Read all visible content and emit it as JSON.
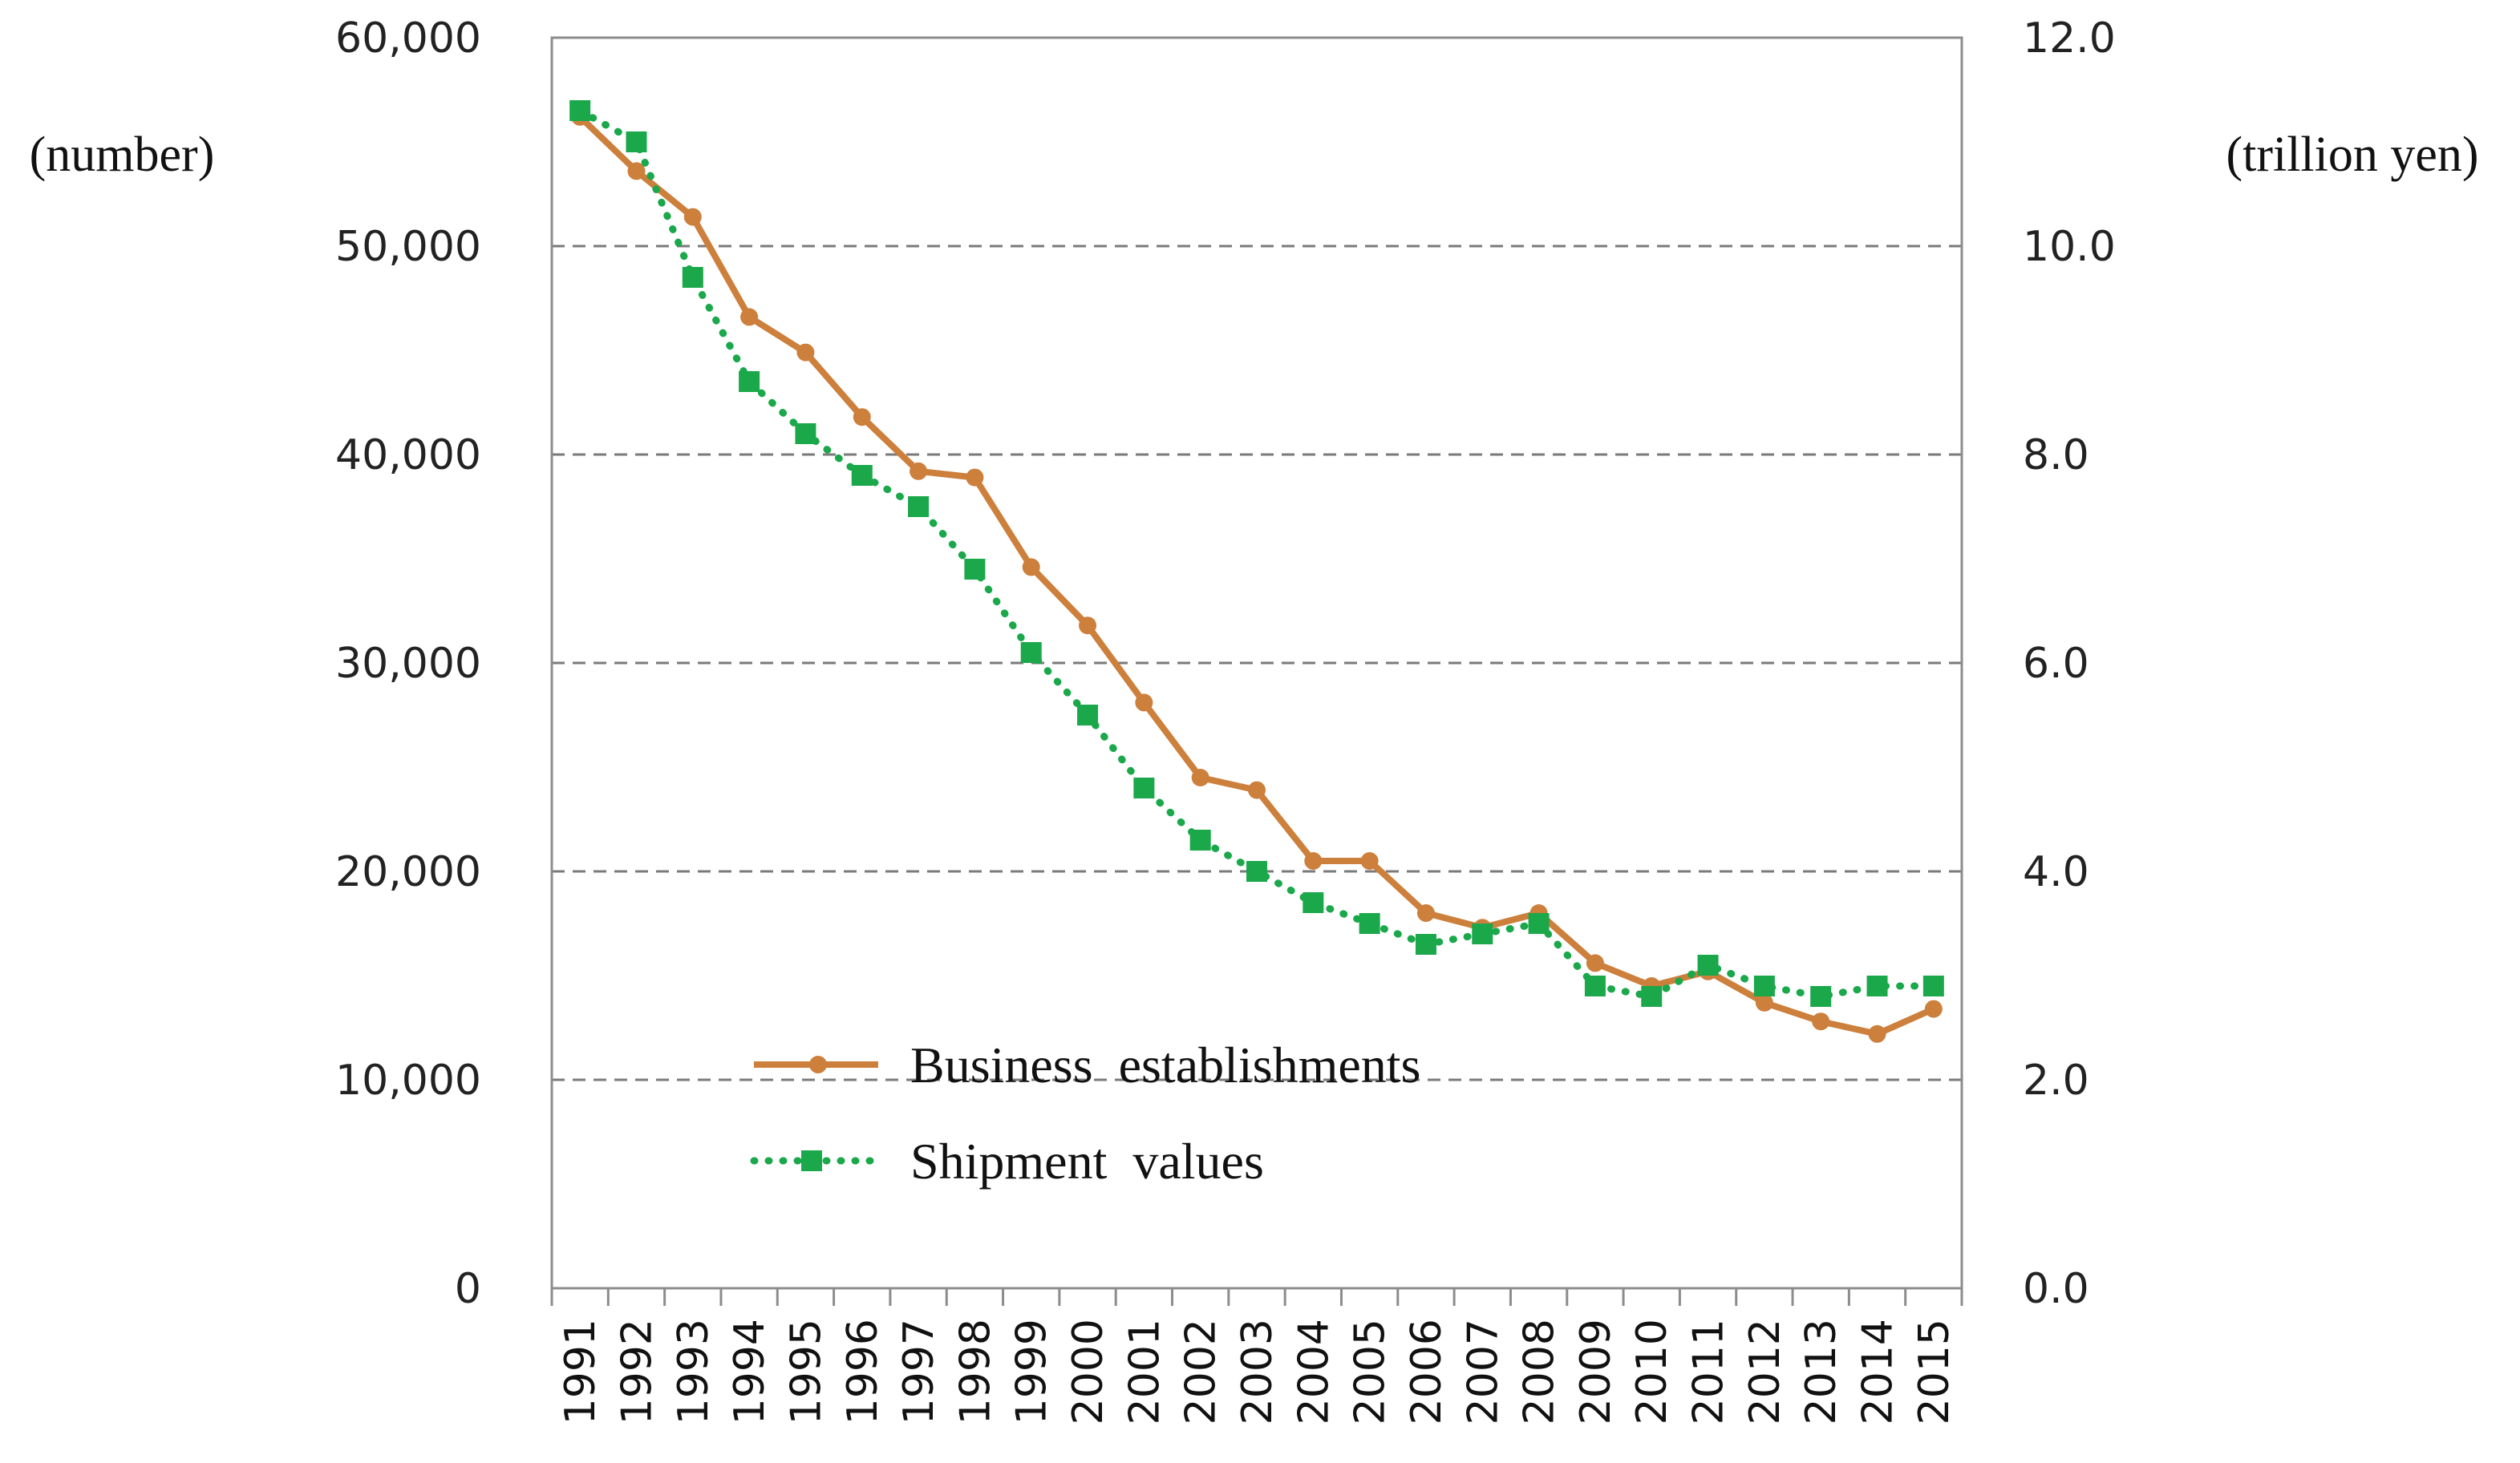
{
  "chart_data": {
    "type": "line",
    "title": "",
    "xlabel": "",
    "ylabel_left": "(number)",
    "ylabel_right": "(trillion yen)",
    "categories": [
      "1991",
      "1992",
      "1993",
      "1994",
      "1995",
      "1996",
      "1997",
      "1998",
      "1999",
      "2000",
      "2001",
      "2002",
      "2003",
      "2004",
      "2005",
      "2006",
      "2007",
      "2008",
      "2009",
      "2010",
      "2011",
      "2012",
      "2013",
      "2014",
      "2015"
    ],
    "y_left": {
      "lim": [
        0,
        60000
      ],
      "ticks": [
        0,
        10000,
        20000,
        30000,
        40000,
        50000,
        60000
      ],
      "tick_labels": [
        "0",
        "10,000",
        "20,000",
        "30,000",
        "40,000",
        "50,000",
        "60,000"
      ]
    },
    "y_right": {
      "lim": [
        0,
        12
      ],
      "ticks": [
        0,
        2,
        4,
        6,
        8,
        10,
        12
      ],
      "tick_labels": [
        "0.0",
        "2.0",
        "4.0",
        "6.0",
        "8.0",
        "10.0",
        "12.0"
      ]
    },
    "grid": "horizontal-dashed",
    "legend_position": "lower-center",
    "series": [
      {
        "name": "Business  establishments",
        "axis": "left",
        "color": "#cd7f3c",
        "style": "solid",
        "marker": "circle",
        "values": [
          56200,
          53600,
          51400,
          46600,
          44900,
          41800,
          39200,
          38900,
          34600,
          31800,
          28100,
          24500,
          23900,
          20500,
          20500,
          18000,
          17300,
          18000,
          15600,
          14500,
          15200,
          13700,
          12800,
          12200,
          13400
        ]
      },
      {
        "name": "Shipment  values",
        "axis": "right",
        "color": "#1aa84b",
        "style": "dotted",
        "marker": "square",
        "values": [
          11.3,
          11.0,
          9.7,
          8.7,
          8.2,
          7.8,
          7.5,
          6.9,
          6.1,
          5.5,
          4.8,
          4.3,
          4.0,
          3.7,
          3.5,
          3.3,
          3.4,
          3.5,
          2.9,
          2.8,
          3.1,
          2.9,
          2.8,
          2.9,
          2.9
        ]
      }
    ]
  }
}
